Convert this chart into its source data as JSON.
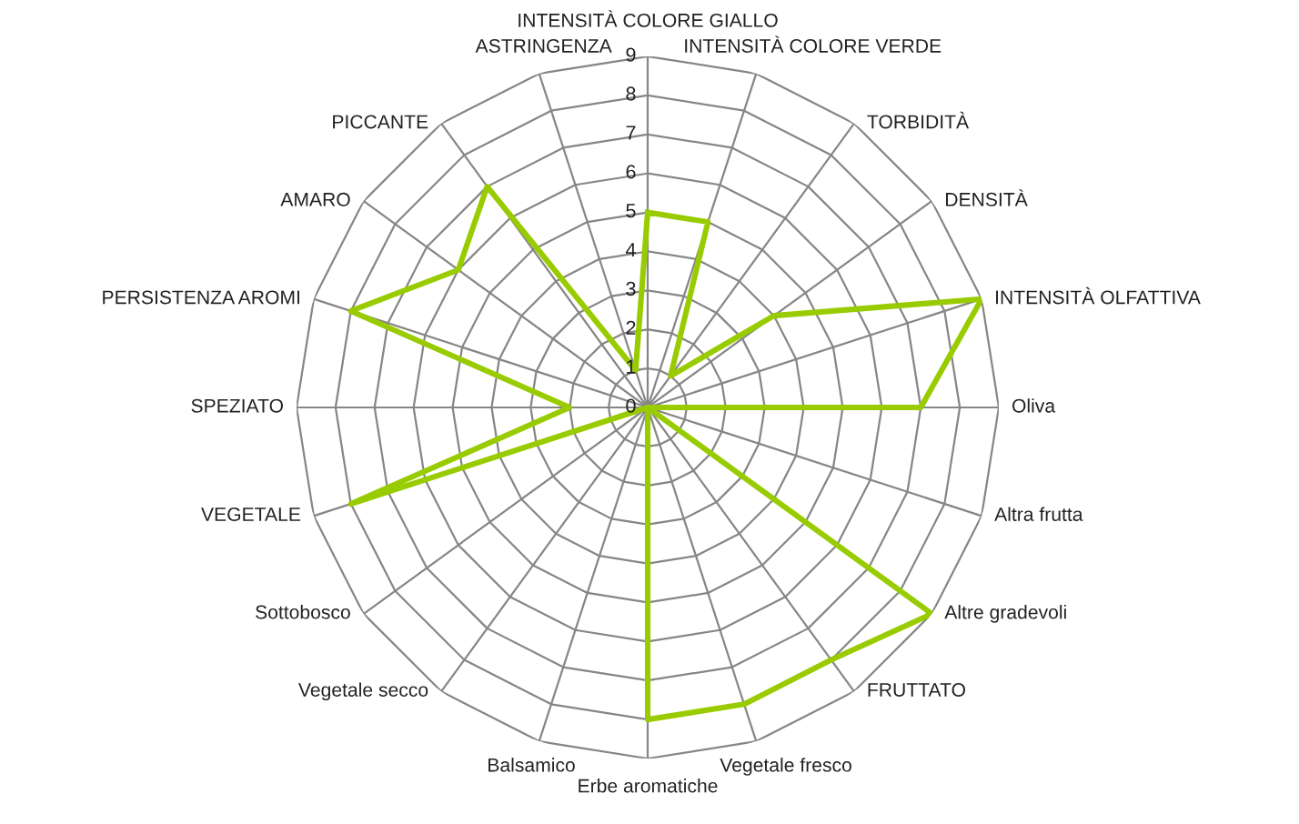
{
  "chart_data": {
    "type": "radar",
    "categories": [
      "INTENSITÀ COLORE GIALLO",
      "INTENSITÀ COLORE VERDE",
      "TORBIDITÀ",
      "DENSITÀ",
      "INTENSITÀ OLFATTIVA",
      "Oliva",
      "Altra frutta",
      "Altre gradevoli",
      "FRUTTATO",
      "Vegetale fresco",
      "Erbe aromatiche",
      "Balsamico",
      "Vegetale secco",
      "Sottobosco",
      "VEGETALE",
      "SPEZIATO",
      "PERSISTENZA AROMI",
      "AMARO",
      "PICCANTE",
      "ASTRINGENZA"
    ],
    "series": [
      {
        "color": "#99cc00",
        "values": [
          5,
          5,
          1,
          4,
          9,
          7,
          0,
          9,
          8,
          8,
          8,
          0,
          0,
          0,
          8,
          2,
          8,
          6,
          7,
          1
        ]
      }
    ],
    "ylim": [
      0,
      9
    ],
    "yticks": [
      0,
      1,
      2,
      3,
      4,
      5,
      6,
      7,
      8,
      9
    ],
    "grid": true
  }
}
